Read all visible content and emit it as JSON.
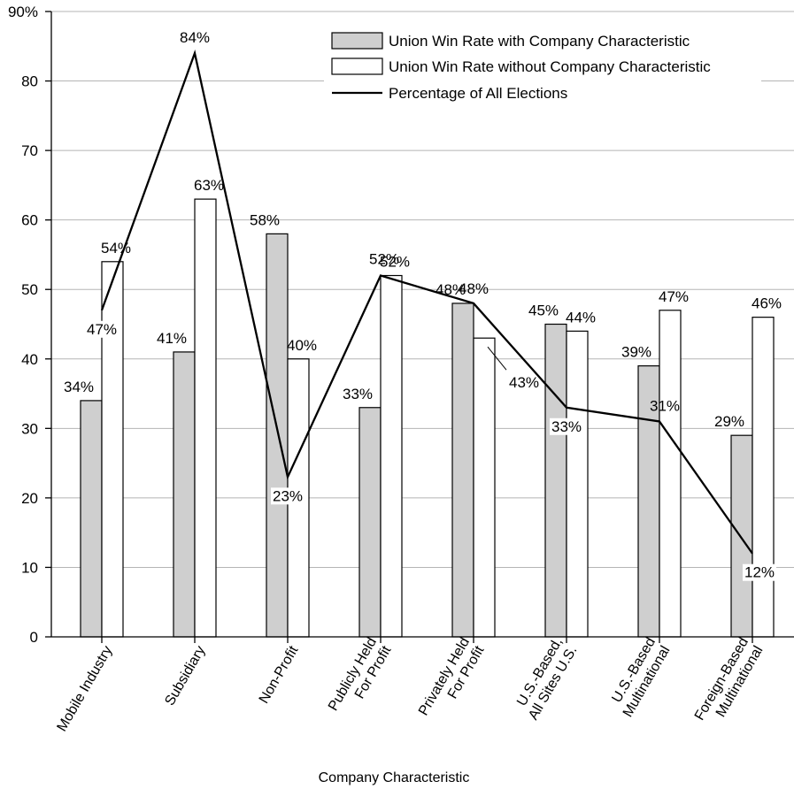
{
  "chart_data": {
    "type": "bar",
    "xlabel": "Company Characteristic",
    "ylabel": "",
    "ylim": [
      0,
      90
    ],
    "yticks": [
      0,
      10,
      20,
      30,
      40,
      50,
      60,
      70,
      80,
      90
    ],
    "ytick_labels": [
      "0",
      "10",
      "20",
      "30",
      "40",
      "50",
      "60",
      "70",
      "80",
      "90%"
    ],
    "grid": true,
    "legend_position": "top-right",
    "categories": [
      [
        "Mobile Industry"
      ],
      [
        "Subsidiary"
      ],
      [
        "Non-Profit"
      ],
      [
        "Publicly Held",
        "For Profit"
      ],
      [
        "Privately Held",
        "For Profit"
      ],
      [
        "U.S.-Based,",
        "All Sites U.S."
      ],
      [
        "U.S.-Based",
        "Multinational"
      ],
      [
        "Foreign-Based",
        "Multinational"
      ]
    ],
    "series": [
      {
        "name": "Union Win Rate with Company Characteristic",
        "type": "bar",
        "color": "#cfcfcf",
        "values": [
          34,
          41,
          58,
          33,
          48,
          45,
          39,
          29
        ],
        "labels": [
          "34%",
          "41%",
          "58%",
          "33%",
          "48%",
          "45%",
          "39%",
          "29%"
        ]
      },
      {
        "name": "Union Win Rate without Company Characteristic",
        "type": "bar",
        "color": "#ffffff",
        "values": [
          54,
          63,
          40,
          52,
          43,
          44,
          47,
          46
        ],
        "labels": [
          "54%",
          "63%",
          "40%",
          "52%",
          "43%",
          "44%",
          "47%",
          "46%"
        ]
      },
      {
        "name": "Percentage of All Elections",
        "type": "line",
        "color": "#000000",
        "values": [
          47,
          84,
          23,
          52,
          48,
          33,
          31,
          12
        ],
        "labels": [
          "47%",
          "84%",
          "23%",
          "52%",
          "48%",
          "33%",
          "31%",
          "12%"
        ]
      }
    ]
  }
}
